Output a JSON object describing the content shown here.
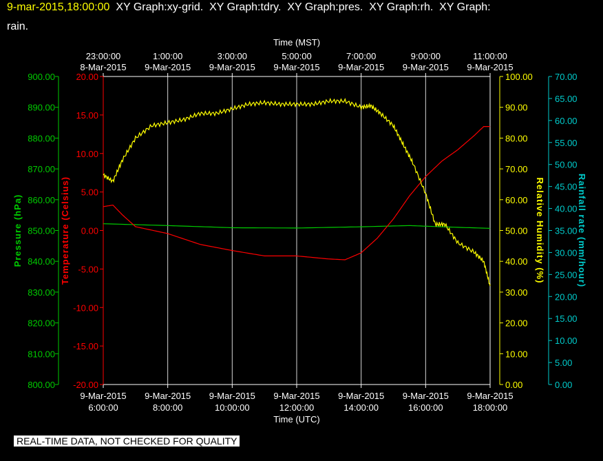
{
  "header": {
    "timestamp": "9-mar-2015,18:00:00",
    "title_rest": "  XY Graph:xy-grid.  XY Graph:tdry.  XY Graph:pres.  XY Graph:rh.  XY Graph:",
    "title_line2": "rain."
  },
  "disclaimer": "REAL-TIME DATA, NOT CHECKED FOR QUALITY",
  "colors": {
    "pressure": "#00cc00",
    "temperature": "#ff0000",
    "humidity": "#ffff00",
    "rain": "#00cccc",
    "grid": "#ffffff",
    "background": "#000000"
  },
  "chart_data": {
    "type": "line",
    "x_top_label": "Time (MST)",
    "x_bottom_label": "Time (UTC)",
    "x_bottom_ticks": [
      {
        "date": "9-Mar-2015",
        "time": "6:00:00"
      },
      {
        "date": "9-Mar-2015",
        "time": "8:00:00"
      },
      {
        "date": "9-Mar-2015",
        "time": "10:00:00"
      },
      {
        "date": "9-Mar-2015",
        "time": "12:00:00"
      },
      {
        "date": "9-Mar-2015",
        "time": "14:00:00"
      },
      {
        "date": "9-Mar-2015",
        "time": "16:00:00"
      },
      {
        "date": "9-Mar-2015",
        "time": "18:00:00"
      }
    ],
    "x_top_ticks": [
      {
        "time": "23:00:00",
        "date": "8-Mar-2015"
      },
      {
        "time": "1:00:00",
        "date": "9-Mar-2015"
      },
      {
        "time": "3:00:00",
        "date": "9-Mar-2015"
      },
      {
        "time": "5:00:00",
        "date": "9-Mar-2015"
      },
      {
        "time": "7:00:00",
        "date": "9-Mar-2015"
      },
      {
        "time": "9:00:00",
        "date": "9-Mar-2015"
      },
      {
        "time": "11:00:00",
        "date": "9-Mar-2015"
      }
    ],
    "x_range_utc_hours": [
      6,
      18
    ],
    "grid": "vertical lines at each 2-hour tick",
    "axes": {
      "pressure": {
        "label": "Pressure (hPa)",
        "range": [
          800,
          900
        ],
        "ticks": [
          "800.00",
          "810.00",
          "820.00",
          "830.00",
          "840.00",
          "850.00",
          "860.00",
          "870.00",
          "880.00",
          "890.00",
          "900.00"
        ]
      },
      "temperature": {
        "label": "Temperature (Celsius)",
        "range": [
          -20,
          20
        ],
        "ticks": [
          "-20.00",
          "-15.00",
          "-10.00",
          "-5.00",
          "0.00",
          "5.00",
          "10.00",
          "15.00",
          "20.00"
        ]
      },
      "humidity": {
        "label": "Relative Humidity (%)",
        "range": [
          0,
          100
        ],
        "ticks": [
          "0.00",
          "10.00",
          "20.00",
          "30.00",
          "40.00",
          "50.00",
          "60.00",
          "70.00",
          "80.00",
          "90.00",
          "100.00"
        ]
      },
      "rain": {
        "label": "Rainfall rate (mm/hour)",
        "range": [
          0,
          70
        ],
        "ticks": [
          "0.00",
          "5.00",
          "10.00",
          "15.00",
          "20.00",
          "25.00",
          "30.00",
          "35.00",
          "40.00",
          "45.00",
          "50.00",
          "55.00",
          "60.00",
          "65.00",
          "70.00"
        ]
      }
    },
    "series": [
      {
        "axis": "pressure",
        "color": "#00cc00",
        "points": [
          [
            6.0,
            852.2
          ],
          [
            8.0,
            851.6
          ],
          [
            10.0,
            850.9
          ],
          [
            12.0,
            850.8
          ],
          [
            14.0,
            851.2
          ],
          [
            15.5,
            851.6
          ],
          [
            16.5,
            851.2
          ],
          [
            18.0,
            850.7
          ]
        ]
      },
      {
        "axis": "temperature",
        "color": "#ff0000",
        "points": [
          [
            6.0,
            3.1
          ],
          [
            6.3,
            3.3
          ],
          [
            6.6,
            2.0
          ],
          [
            7.0,
            0.5
          ],
          [
            8.0,
            -0.4
          ],
          [
            9.0,
            -1.8
          ],
          [
            10.0,
            -2.6
          ],
          [
            11.0,
            -3.3
          ],
          [
            12.0,
            -3.3
          ],
          [
            13.0,
            -3.7
          ],
          [
            13.5,
            -3.8
          ],
          [
            14.0,
            -2.9
          ],
          [
            14.5,
            -1.0
          ],
          [
            15.0,
            1.5
          ],
          [
            15.5,
            4.5
          ],
          [
            16.0,
            7.0
          ],
          [
            16.5,
            9.0
          ],
          [
            17.0,
            10.5
          ],
          [
            17.5,
            12.3
          ],
          [
            17.8,
            13.5
          ],
          [
            18.0,
            13.5
          ]
        ]
      },
      {
        "axis": "humidity",
        "color": "#ffff00",
        "points": [
          [
            6.0,
            68
          ],
          [
            6.3,
            66
          ],
          [
            6.6,
            73
          ],
          [
            7.0,
            80
          ],
          [
            7.5,
            84
          ],
          [
            8.0,
            85
          ],
          [
            8.5,
            86
          ],
          [
            9.0,
            88
          ],
          [
            9.5,
            88
          ],
          [
            10.0,
            89.5
          ],
          [
            10.5,
            91
          ],
          [
            11.0,
            91.5
          ],
          [
            11.5,
            91
          ],
          [
            12.0,
            91
          ],
          [
            12.5,
            91
          ],
          [
            13.0,
            92
          ],
          [
            13.5,
            92
          ],
          [
            14.0,
            90
          ],
          [
            14.3,
            90.5
          ],
          [
            14.6,
            88
          ],
          [
            15.0,
            84
          ],
          [
            15.3,
            78
          ],
          [
            15.6,
            72
          ],
          [
            16.0,
            62
          ],
          [
            16.3,
            52
          ],
          [
            16.6,
            52
          ],
          [
            17.0,
            46
          ],
          [
            17.5,
            43
          ],
          [
            17.8,
            40
          ],
          [
            18.0,
            32
          ]
        ]
      },
      {
        "axis": "rain",
        "color": "#00cccc",
        "points": []
      }
    ]
  }
}
